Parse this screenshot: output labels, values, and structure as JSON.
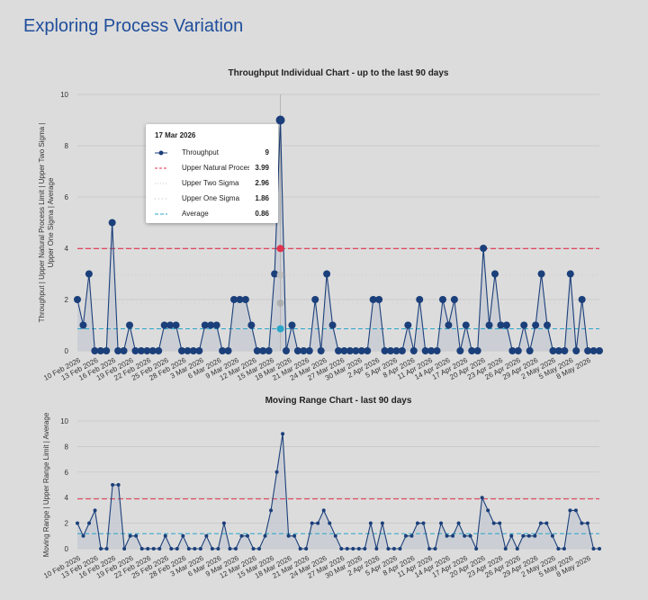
{
  "page": {
    "title": "Exploring Process Variation"
  },
  "colors": {
    "series": "#1b3f7a",
    "upper_limit": "#e0334d",
    "two_sigma": "#c9c9c9",
    "one_sigma": "#d0d0d0",
    "average": "#2aa6c9",
    "grid": "#c4c4c4",
    "fill": "#c6cbd3"
  },
  "tooltip": {
    "title": "17 Mar 2026",
    "rows": [
      {
        "label": "Throughput",
        "value": "9"
      },
      {
        "label": "Upper Natural Proces...",
        "value": "3.99"
      },
      {
        "label": "Upper Two Sigma",
        "value": "2.96"
      },
      {
        "label": "Upper One Sigma",
        "value": "1.86"
      },
      {
        "label": "Average",
        "value": "0.86"
      }
    ]
  },
  "chart_data": [
    {
      "type": "line",
      "title": "Throughput Individual Chart - up to the last 90 days",
      "ylabel": "Throughput | Upper Natural Process Limit | Upper Two Sigma | Upper One Sigma | Average",
      "ylim": [
        0,
        10
      ],
      "yticks": [
        0,
        2,
        4,
        6,
        8,
        10
      ],
      "grid": true,
      "x_start": "10 Feb 2026",
      "x_end": "10 May 2026",
      "tick_labels": [
        "10 Feb 2026",
        "13 Feb 2026",
        "16 Feb 2026",
        "19 Feb 2026",
        "22 Feb 2026",
        "25 Feb 2026",
        "28 Feb 2026",
        "3 Mar 2026",
        "6 Mar 2026",
        "9 Mar 2026",
        "12 Mar 2026",
        "15 Mar 2026",
        "18 Mar 2026",
        "21 Mar 2026",
        "24 Mar 2026",
        "27 Mar 2026",
        "30 Mar 2026",
        "2 Apr 2026",
        "5 Apr 2026",
        "8 Apr 2026",
        "11 Apr 2026",
        "14 Apr 2026",
        "17 Apr 2026",
        "20 Apr 2026",
        "23 Apr 2026",
        "26 Apr 2026",
        "29 Apr 2026",
        "2 May 2026",
        "5 May 2026",
        "8 May 2026"
      ],
      "highlight_date": "17 Mar 2026",
      "series": [
        {
          "name": "Throughput",
          "values": [
            2,
            1,
            3,
            0,
            0,
            0,
            5,
            0,
            0,
            1,
            0,
            0,
            0,
            0,
            0,
            1,
            1,
            1,
            0,
            0,
            0,
            0,
            1,
            1,
            1,
            0,
            0,
            2,
            2,
            2,
            1,
            0,
            0,
            0,
            3,
            9,
            0,
            1,
            0,
            0,
            0,
            2,
            0,
            3,
            1,
            0,
            0,
            0,
            0,
            0,
            0,
            2,
            2,
            0,
            0,
            0,
            0,
            1,
            0,
            2,
            0,
            0,
            0,
            2,
            1,
            2,
            0,
            1,
            0,
            0,
            4,
            1,
            3,
            1,
            1,
            0,
            0,
            1,
            0,
            1,
            3,
            1,
            0,
            0,
            0,
            3,
            0,
            2,
            0,
            0,
            0
          ]
        },
        {
          "name": "Upper Natural Process Limit",
          "constant": 3.99
        },
        {
          "name": "Upper Two Sigma",
          "constant": 2.96
        },
        {
          "name": "Upper One Sigma",
          "constant": 1.86
        },
        {
          "name": "Average",
          "constant": 0.86
        }
      ]
    },
    {
      "type": "line",
      "title": "Moving Range Chart - last 90 days",
      "ylabel": "Moving Range | Upper Range Limit | Average",
      "ylim": [
        0,
        10
      ],
      "yticks": [
        0,
        2,
        4,
        6,
        8,
        10
      ],
      "grid": true,
      "x_start": "10 Feb 2026",
      "x_end": "10 May 2026",
      "tick_labels": [
        "10 Feb 2026",
        "13 Feb 2026",
        "16 Feb 2026",
        "19 Feb 2026",
        "22 Feb 2026",
        "25 Feb 2026",
        "28 Feb 2026",
        "3 Mar 2026",
        "6 Mar 2026",
        "9 Mar 2026",
        "12 Mar 2026",
        "15 Mar 2026",
        "18 Mar 2026",
        "21 Mar 2026",
        "24 Mar 2026",
        "27 Mar 2026",
        "30 Mar 2026",
        "2 Apr 2026",
        "5 Apr 2026",
        "8 Apr 2026",
        "11 Apr 2026",
        "14 Apr 2026",
        "17 Apr 2026",
        "20 Apr 2026",
        "23 Apr 2026",
        "26 Apr 2026",
        "29 Apr 2026",
        "2 May 2026",
        "5 May 2026",
        "8 May 2026"
      ],
      "series": [
        {
          "name": "Moving Range",
          "values": [
            2,
            1,
            2,
            3,
            0,
            0,
            5,
            5,
            0,
            1,
            1,
            0,
            0,
            0,
            0,
            1,
            0,
            0,
            1,
            0,
            0,
            0,
            1,
            0,
            0,
            2,
            0,
            0,
            1,
            1,
            0,
            0,
            1,
            3,
            6,
            9,
            1,
            1,
            0,
            0,
            2,
            2,
            3,
            2,
            1,
            0,
            0,
            0,
            0,
            0,
            2,
            0,
            2,
            0,
            0,
            0,
            1,
            1,
            2,
            2,
            0,
            0,
            2,
            1,
            1,
            2,
            1,
            1,
            0,
            4,
            3,
            2,
            2,
            0,
            1,
            0,
            1,
            1,
            1,
            2,
            2,
            1,
            0,
            0,
            3,
            3,
            2,
            2,
            0,
            0
          ]
        },
        {
          "name": "Upper Range Limit",
          "constant": 3.9
        },
        {
          "name": "Average",
          "constant": 1.18
        }
      ]
    }
  ]
}
